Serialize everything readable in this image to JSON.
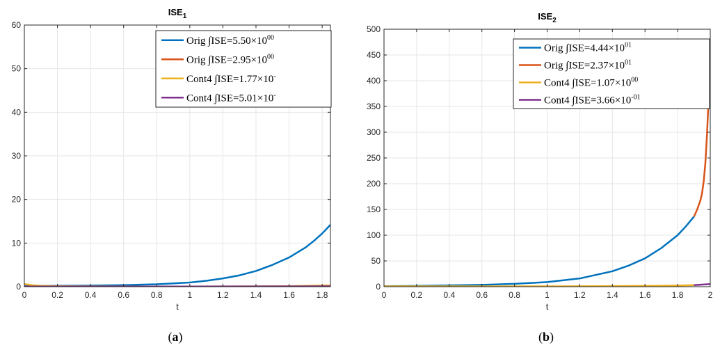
{
  "chart_data": [
    {
      "type": "line",
      "title": "ISE",
      "title_sub": "1",
      "xlabel": "t",
      "ylabel": "",
      "xlim": [
        0,
        1.85
      ],
      "ylim": [
        0,
        60
      ],
      "xticks": [
        0,
        0.2,
        0.4,
        0.6,
        0.8,
        1,
        1.2,
        1.4,
        1.6,
        1.8
      ],
      "xtick_labels": [
        "0",
        "0.2",
        "0.4",
        "0.6",
        "0.8",
        "1",
        "1.2",
        "1.4",
        "1.6",
        "1.8"
      ],
      "yticks": [
        0,
        10,
        20,
        30,
        40,
        50,
        60
      ],
      "ytick_labels": [
        "0",
        "10",
        "20",
        "30",
        "40",
        "50",
        "60"
      ],
      "grid": true,
      "legend_position": "top-right",
      "caption_label": "a",
      "series": [
        {
          "name": "Orig ∫ISE=5.50×10",
          "name_exp": "00",
          "color": "#0072BD",
          "x": [
            0,
            0.2,
            0.4,
            0.6,
            0.8,
            1.0,
            1.1,
            1.2,
            1.3,
            1.4,
            1.5,
            1.6,
            1.7,
            1.75,
            1.8,
            1.85
          ],
          "y": [
            0.15,
            0.2,
            0.25,
            0.35,
            0.55,
            0.95,
            1.35,
            1.9,
            2.6,
            3.6,
            5.0,
            6.7,
            9.0,
            10.5,
            12.2,
            14.2
          ]
        },
        {
          "name": "Orig ∫ISE=2.95×10",
          "name_exp": "00",
          "color": "#D95319",
          "x": [],
          "y": []
        },
        {
          "name": "Cont4 ∫ISE=1.77×10",
          "name_exp": "-",
          "color": "#EDB120",
          "x": [
            0,
            0.05,
            0.1,
            0.2,
            0.4,
            0.6,
            0.8,
            1.0,
            1.2,
            1.4,
            1.6,
            1.85
          ],
          "y": [
            0.6,
            0.35,
            0.2,
            0.12,
            0.08,
            0.06,
            0.05,
            0.05,
            0.06,
            0.08,
            0.12,
            0.3
          ]
        },
        {
          "name": "Cont4 ∫ISE=5.01×10",
          "name_exp": "-",
          "color": "#7E2F8E",
          "x": [
            0,
            0.5,
            1.0,
            1.5,
            1.85
          ],
          "y": [
            0.05,
            0.05,
            0.05,
            0.06,
            0.08
          ]
        }
      ]
    },
    {
      "type": "line",
      "title": "ISE",
      "title_sub": "2",
      "xlabel": "t",
      "ylabel": "",
      "xlim": [
        0,
        2
      ],
      "ylim": [
        0,
        500
      ],
      "xticks": [
        0,
        0.2,
        0.4,
        0.6,
        0.8,
        1,
        1.2,
        1.4,
        1.6,
        1.8,
        2
      ],
      "xtick_labels": [
        "0",
        "0.2",
        "0.4",
        "0.6",
        "0.8",
        "1",
        "1.2",
        "1.4",
        "1.6",
        "1.8",
        "2"
      ],
      "yticks": [
        0,
        50,
        100,
        150,
        200,
        250,
        300,
        350,
        400,
        450,
        500
      ],
      "ytick_labels": [
        "0",
        "50",
        "100",
        "150",
        "200",
        "250",
        "300",
        "350",
        "400",
        "450",
        "500"
      ],
      "grid": true,
      "legend_position": "top-right",
      "caption_label": "b",
      "series": [
        {
          "name": "Orig ∫ISE=4.44×10",
          "name_exp": "01",
          "color": "#0072BD",
          "x": [
            0,
            0.2,
            0.4,
            0.6,
            0.8,
            1.0,
            1.2,
            1.4,
            1.5,
            1.6,
            1.7,
            1.8,
            1.85,
            1.9
          ],
          "y": [
            1,
            1.5,
            2.5,
            3.5,
            5.5,
            9,
            16,
            30,
            41,
            55,
            75,
            100,
            117,
            136
          ]
        },
        {
          "name": "Orig ∫ISE=2.37×10",
          "name_exp": "01",
          "color": "#D95319",
          "x": [
            1.9,
            1.92,
            1.94,
            1.95,
            1.96,
            1.97,
            1.98,
            1.99,
            2.0
          ],
          "y": [
            136,
            150,
            168,
            182,
            205,
            240,
            295,
            365,
            455
          ]
        },
        {
          "name": "Cont4 ∫ISE=1.07×10",
          "name_exp": "00",
          "color": "#EDB120",
          "x": [
            0,
            0.4,
            0.8,
            1.2,
            1.6,
            1.8,
            1.9
          ],
          "y": [
            0.6,
            0.6,
            0.7,
            0.9,
            1.5,
            2.2,
            3.0
          ]
        },
        {
          "name": "Cont4 ∫ISE=3.66×10",
          "name_exp": "-01",
          "color": "#7E2F8E",
          "x": [
            1.9,
            1.95,
            2.0
          ],
          "y": [
            3.0,
            4.0,
            5.0
          ]
        }
      ]
    }
  ]
}
